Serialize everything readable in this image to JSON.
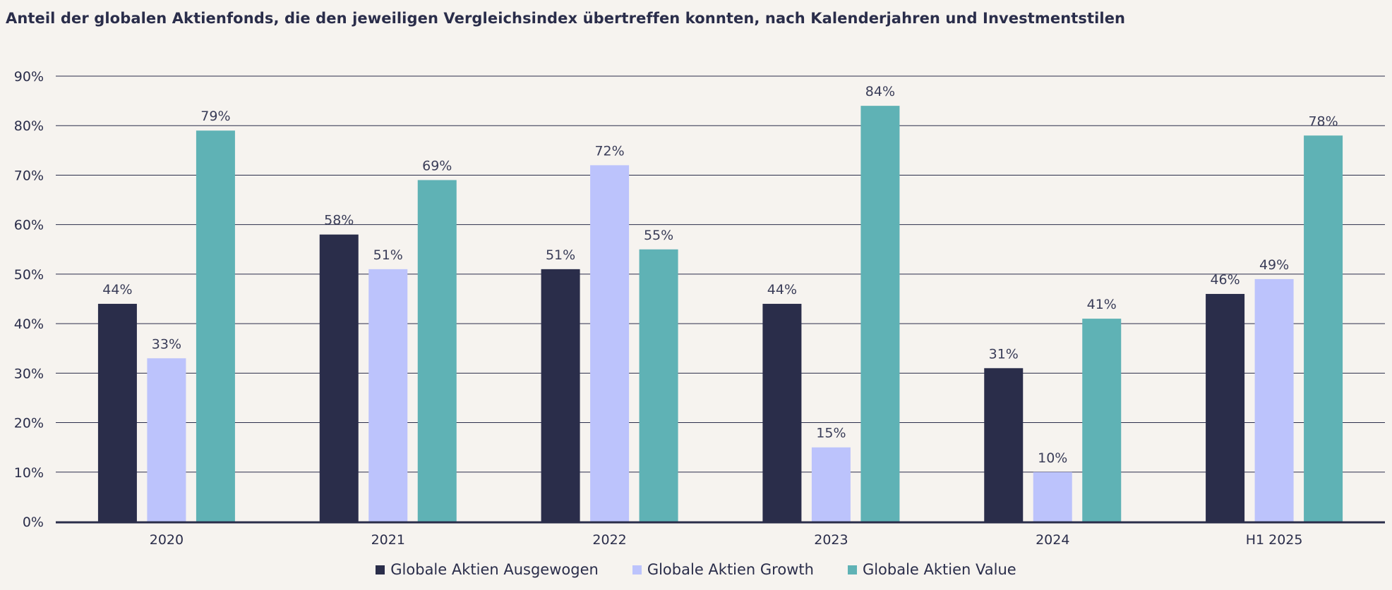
{
  "title": "Anteil der globalen Aktienfonds, die den jeweiligen Vergleichsindex übertreffen konnten, nach Kalenderjahren und Investmentstilen",
  "chart_data": {
    "type": "bar",
    "title": "Anteil der globalen Aktienfonds, die den jeweiligen Vergleichsindex übertreffen konnten, nach Kalenderjahren und Investmentstilen",
    "xlabel": "",
    "ylabel": "",
    "categories": [
      "2020",
      "2021",
      "2022",
      "2023",
      "2024",
      "H1 2025"
    ],
    "series": [
      {
        "name": "Globale Aktien Ausgewogen",
        "color": "#2a2d4a",
        "values": [
          44,
          58,
          51,
          44,
          31,
          46
        ],
        "labels": [
          "44%",
          "58%",
          "51%",
          "44%",
          "31%",
          "46%"
        ]
      },
      {
        "name": "Globale Aktien Growth",
        "color": "#bcc3fc",
        "values": [
          33,
          51,
          72,
          15,
          10,
          49
        ],
        "labels": [
          "33%",
          "51%",
          "72%",
          "15%",
          "10%",
          "49%"
        ]
      },
      {
        "name": "Globale Aktien Value",
        "color": "#5fb2b5",
        "values": [
          79,
          69,
          55,
          84,
          41,
          78
        ],
        "labels": [
          "79%",
          "69%",
          "55%",
          "84%",
          "41%",
          "78%"
        ]
      }
    ],
    "ylim": [
      0,
      90
    ],
    "yticks": [
      0,
      10,
      20,
      30,
      40,
      50,
      60,
      70,
      80,
      90
    ],
    "ytick_labels": [
      "0%",
      "10%",
      "20%",
      "30%",
      "40%",
      "50%",
      "60%",
      "70%",
      "80%",
      "90%"
    ],
    "grid": true,
    "legend_position": "bottom-center"
  },
  "colors": {
    "background": "#f6f3ef",
    "gridline": "#2a2d4a",
    "axis": "#2a2d4a"
  }
}
